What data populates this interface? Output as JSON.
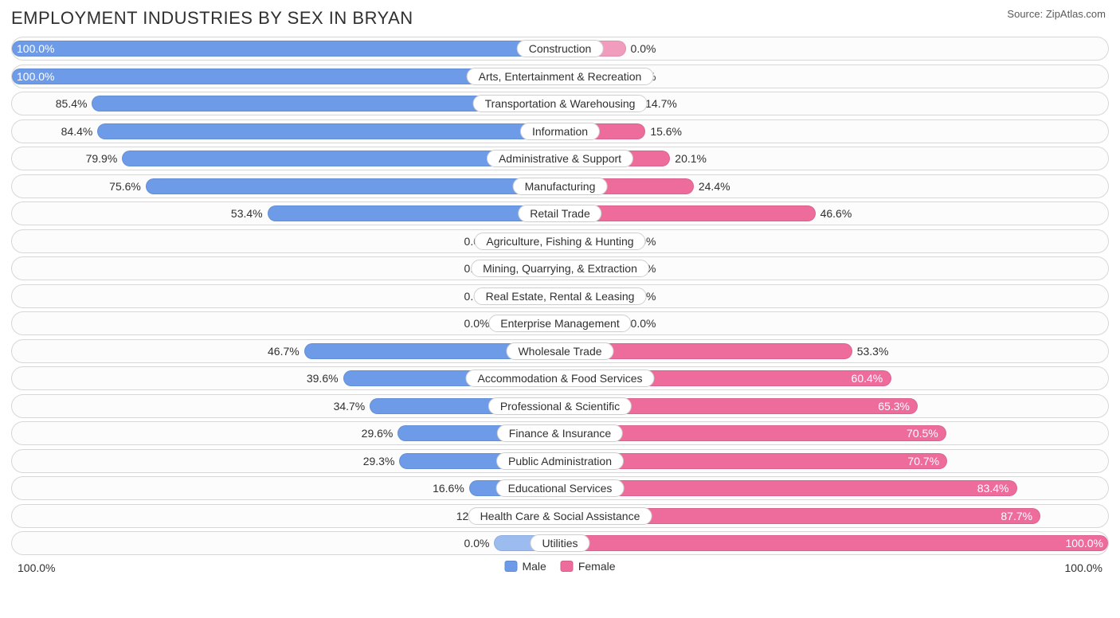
{
  "title": "EMPLOYMENT INDUSTRIES BY SEX IN BRYAN",
  "source_label": "Source:",
  "source_value": "ZipAtlas.com",
  "chart": {
    "type": "diverging-bar",
    "background_color": "#ffffff",
    "row_border_color": "#d7d7d7",
    "row_bg_color": "#fcfcfc",
    "label_fontsize": 14,
    "title_fontsize": 22,
    "male_color": "#6d9be8",
    "female_color": "#ed6c9b",
    "zero_bar_male_color": "#9cbcef",
    "zero_bar_female_color": "#f29cbd",
    "zero_bar_width_pct": 12,
    "axis_left": "100.0%",
    "axis_right": "100.0%",
    "legend": [
      {
        "label": "Male",
        "color": "#6d9be8"
      },
      {
        "label": "Female",
        "color": "#ed6c9b"
      }
    ],
    "rows": [
      {
        "category": "Construction",
        "male": 100.0,
        "male_label": "100.0%",
        "female": 0.0,
        "female_label": "0.0%"
      },
      {
        "category": "Arts, Entertainment & Recreation",
        "male": 100.0,
        "male_label": "100.0%",
        "female": 0.0,
        "female_label": "0.0%"
      },
      {
        "category": "Transportation & Warehousing",
        "male": 85.4,
        "male_label": "85.4%",
        "female": 14.7,
        "female_label": "14.7%"
      },
      {
        "category": "Information",
        "male": 84.4,
        "male_label": "84.4%",
        "female": 15.6,
        "female_label": "15.6%"
      },
      {
        "category": "Administrative & Support",
        "male": 79.9,
        "male_label": "79.9%",
        "female": 20.1,
        "female_label": "20.1%"
      },
      {
        "category": "Manufacturing",
        "male": 75.6,
        "male_label": "75.6%",
        "female": 24.4,
        "female_label": "24.4%"
      },
      {
        "category": "Retail Trade",
        "male": 53.4,
        "male_label": "53.4%",
        "female": 46.6,
        "female_label": "46.6%"
      },
      {
        "category": "Agriculture, Fishing & Hunting",
        "male": 0.0,
        "male_label": "0.0%",
        "female": 0.0,
        "female_label": "0.0%"
      },
      {
        "category": "Mining, Quarrying, & Extraction",
        "male": 0.0,
        "male_label": "0.0%",
        "female": 0.0,
        "female_label": "0.0%"
      },
      {
        "category": "Real Estate, Rental & Leasing",
        "male": 0.0,
        "male_label": "0.0%",
        "female": 0.0,
        "female_label": "0.0%"
      },
      {
        "category": "Enterprise Management",
        "male": 0.0,
        "male_label": "0.0%",
        "female": 0.0,
        "female_label": "0.0%"
      },
      {
        "category": "Wholesale Trade",
        "male": 46.7,
        "male_label": "46.7%",
        "female": 53.3,
        "female_label": "53.3%"
      },
      {
        "category": "Accommodation & Food Services",
        "male": 39.6,
        "male_label": "39.6%",
        "female": 60.4,
        "female_label": "60.4%"
      },
      {
        "category": "Professional & Scientific",
        "male": 34.7,
        "male_label": "34.7%",
        "female": 65.3,
        "female_label": "65.3%"
      },
      {
        "category": "Finance & Insurance",
        "male": 29.6,
        "male_label": "29.6%",
        "female": 70.5,
        "female_label": "70.5%"
      },
      {
        "category": "Public Administration",
        "male": 29.3,
        "male_label": "29.3%",
        "female": 70.7,
        "female_label": "70.7%"
      },
      {
        "category": "Educational Services",
        "male": 16.6,
        "male_label": "16.6%",
        "female": 83.4,
        "female_label": "83.4%"
      },
      {
        "category": "Health Care & Social Assistance",
        "male": 12.3,
        "male_label": "12.3%",
        "female": 87.7,
        "female_label": "87.7%"
      },
      {
        "category": "Utilities",
        "male": 0.0,
        "male_label": "0.0%",
        "female": 100.0,
        "female_label": "100.0%"
      }
    ]
  }
}
